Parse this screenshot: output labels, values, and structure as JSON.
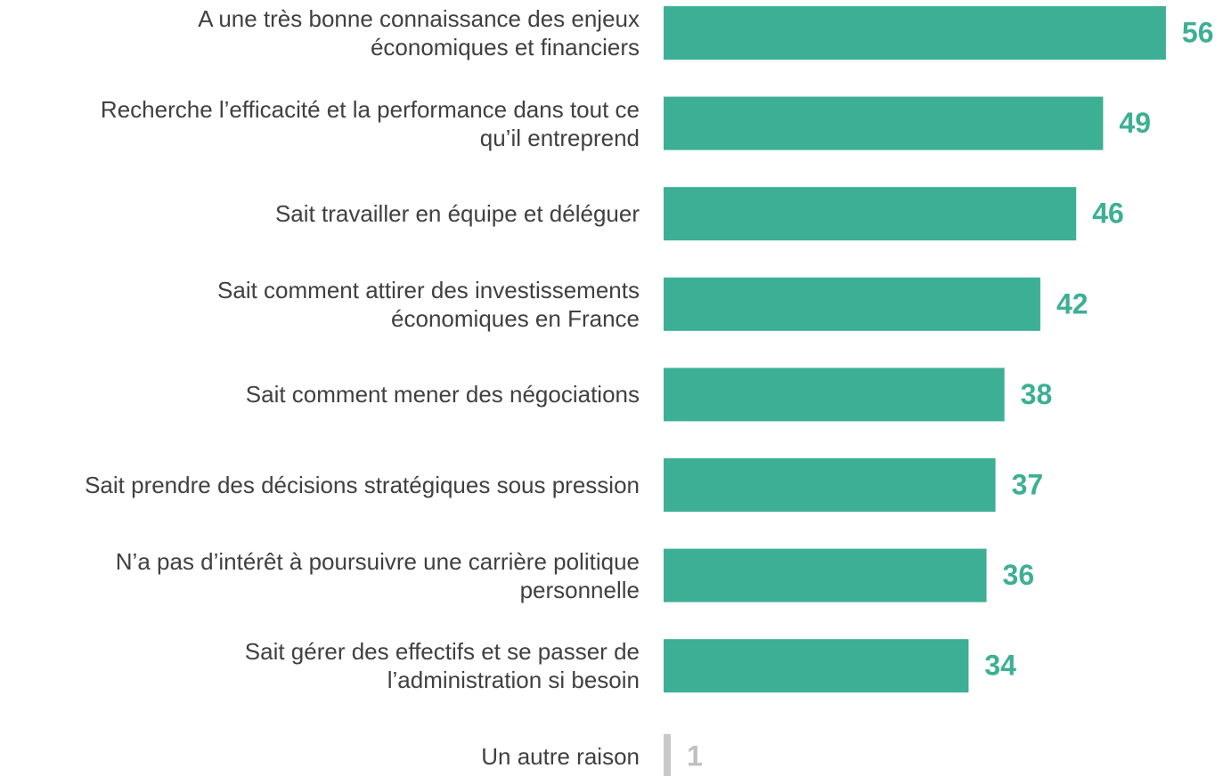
{
  "chart_data": {
    "type": "bar",
    "orientation": "horizontal",
    "categories": [
      "A une très bonne connaissance des enjeux\néconomiques et financiers",
      "Recherche l’efficacité et la performance dans tout ce\nqu’il entreprend",
      "Sait travailler en équipe et déléguer",
      "Sait comment attirer des investissements\néconomiques en France",
      "Sait comment mener des négociations",
      "Sait prendre des décisions stratégiques sous pression",
      "N’a pas d’intérêt à poursuivre une carrière politique\npersonnelle",
      "Sait gérer des effectifs et se passer de\nl’administration si besoin",
      "Un autre raison"
    ],
    "values": [
      56,
      49,
      46,
      42,
      38,
      37,
      36,
      34,
      1
    ],
    "colors": [
      "#3daf94",
      "#3daf94",
      "#3daf94",
      "#3daf94",
      "#3daf94",
      "#3daf94",
      "#3daf94",
      "#3daf94",
      "#c8c8c8"
    ]
  }
}
